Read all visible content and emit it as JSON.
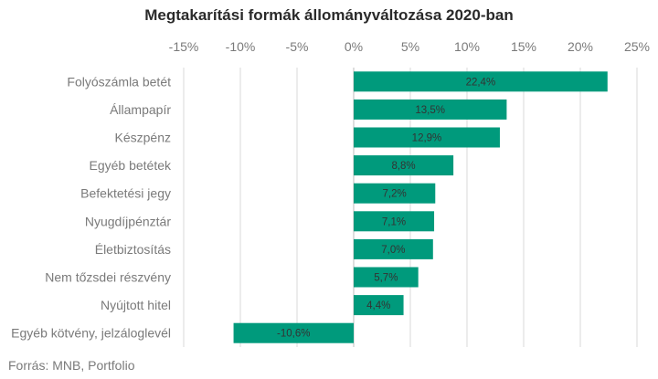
{
  "chart_data": {
    "type": "bar",
    "orientation": "horizontal",
    "title": "Megtakarítási formák állományváltozása 2020-ban",
    "categories": [
      "Folyószámla betét",
      "Állampapír",
      "Készpénz",
      "Egyéb betétek",
      "Befektetési jegy",
      "Nyugdíjpénztár",
      "Életbiztosítás",
      "Nem tőzsdei részvény",
      "Nyújtott hitel",
      "Egyéb kötvény, jelzáloglevél"
    ],
    "values": [
      22.4,
      13.5,
      12.9,
      8.8,
      7.2,
      7.1,
      7.0,
      5.7,
      4.4,
      -10.6
    ],
    "data_labels": [
      "22,4%",
      "13,5%",
      "12,9%",
      "8,8%",
      "7,2%",
      "7,1%",
      "7,0%",
      "5,7%",
      "4,4%",
      "-10,6%"
    ],
    "xlim": [
      -15,
      25
    ],
    "xticks": [
      -15,
      -10,
      -5,
      0,
      5,
      10,
      15,
      20,
      25
    ],
    "xtick_labels": [
      "-15%",
      "-10%",
      "-5%",
      "0%",
      "5%",
      "10%",
      "15%",
      "20%",
      "25%"
    ],
    "axis_position": "top",
    "grid": true,
    "bar_color": "#009a7c",
    "grid_color": "#d9d9d9"
  },
  "source": "Forrás: MNB, Portfolio"
}
